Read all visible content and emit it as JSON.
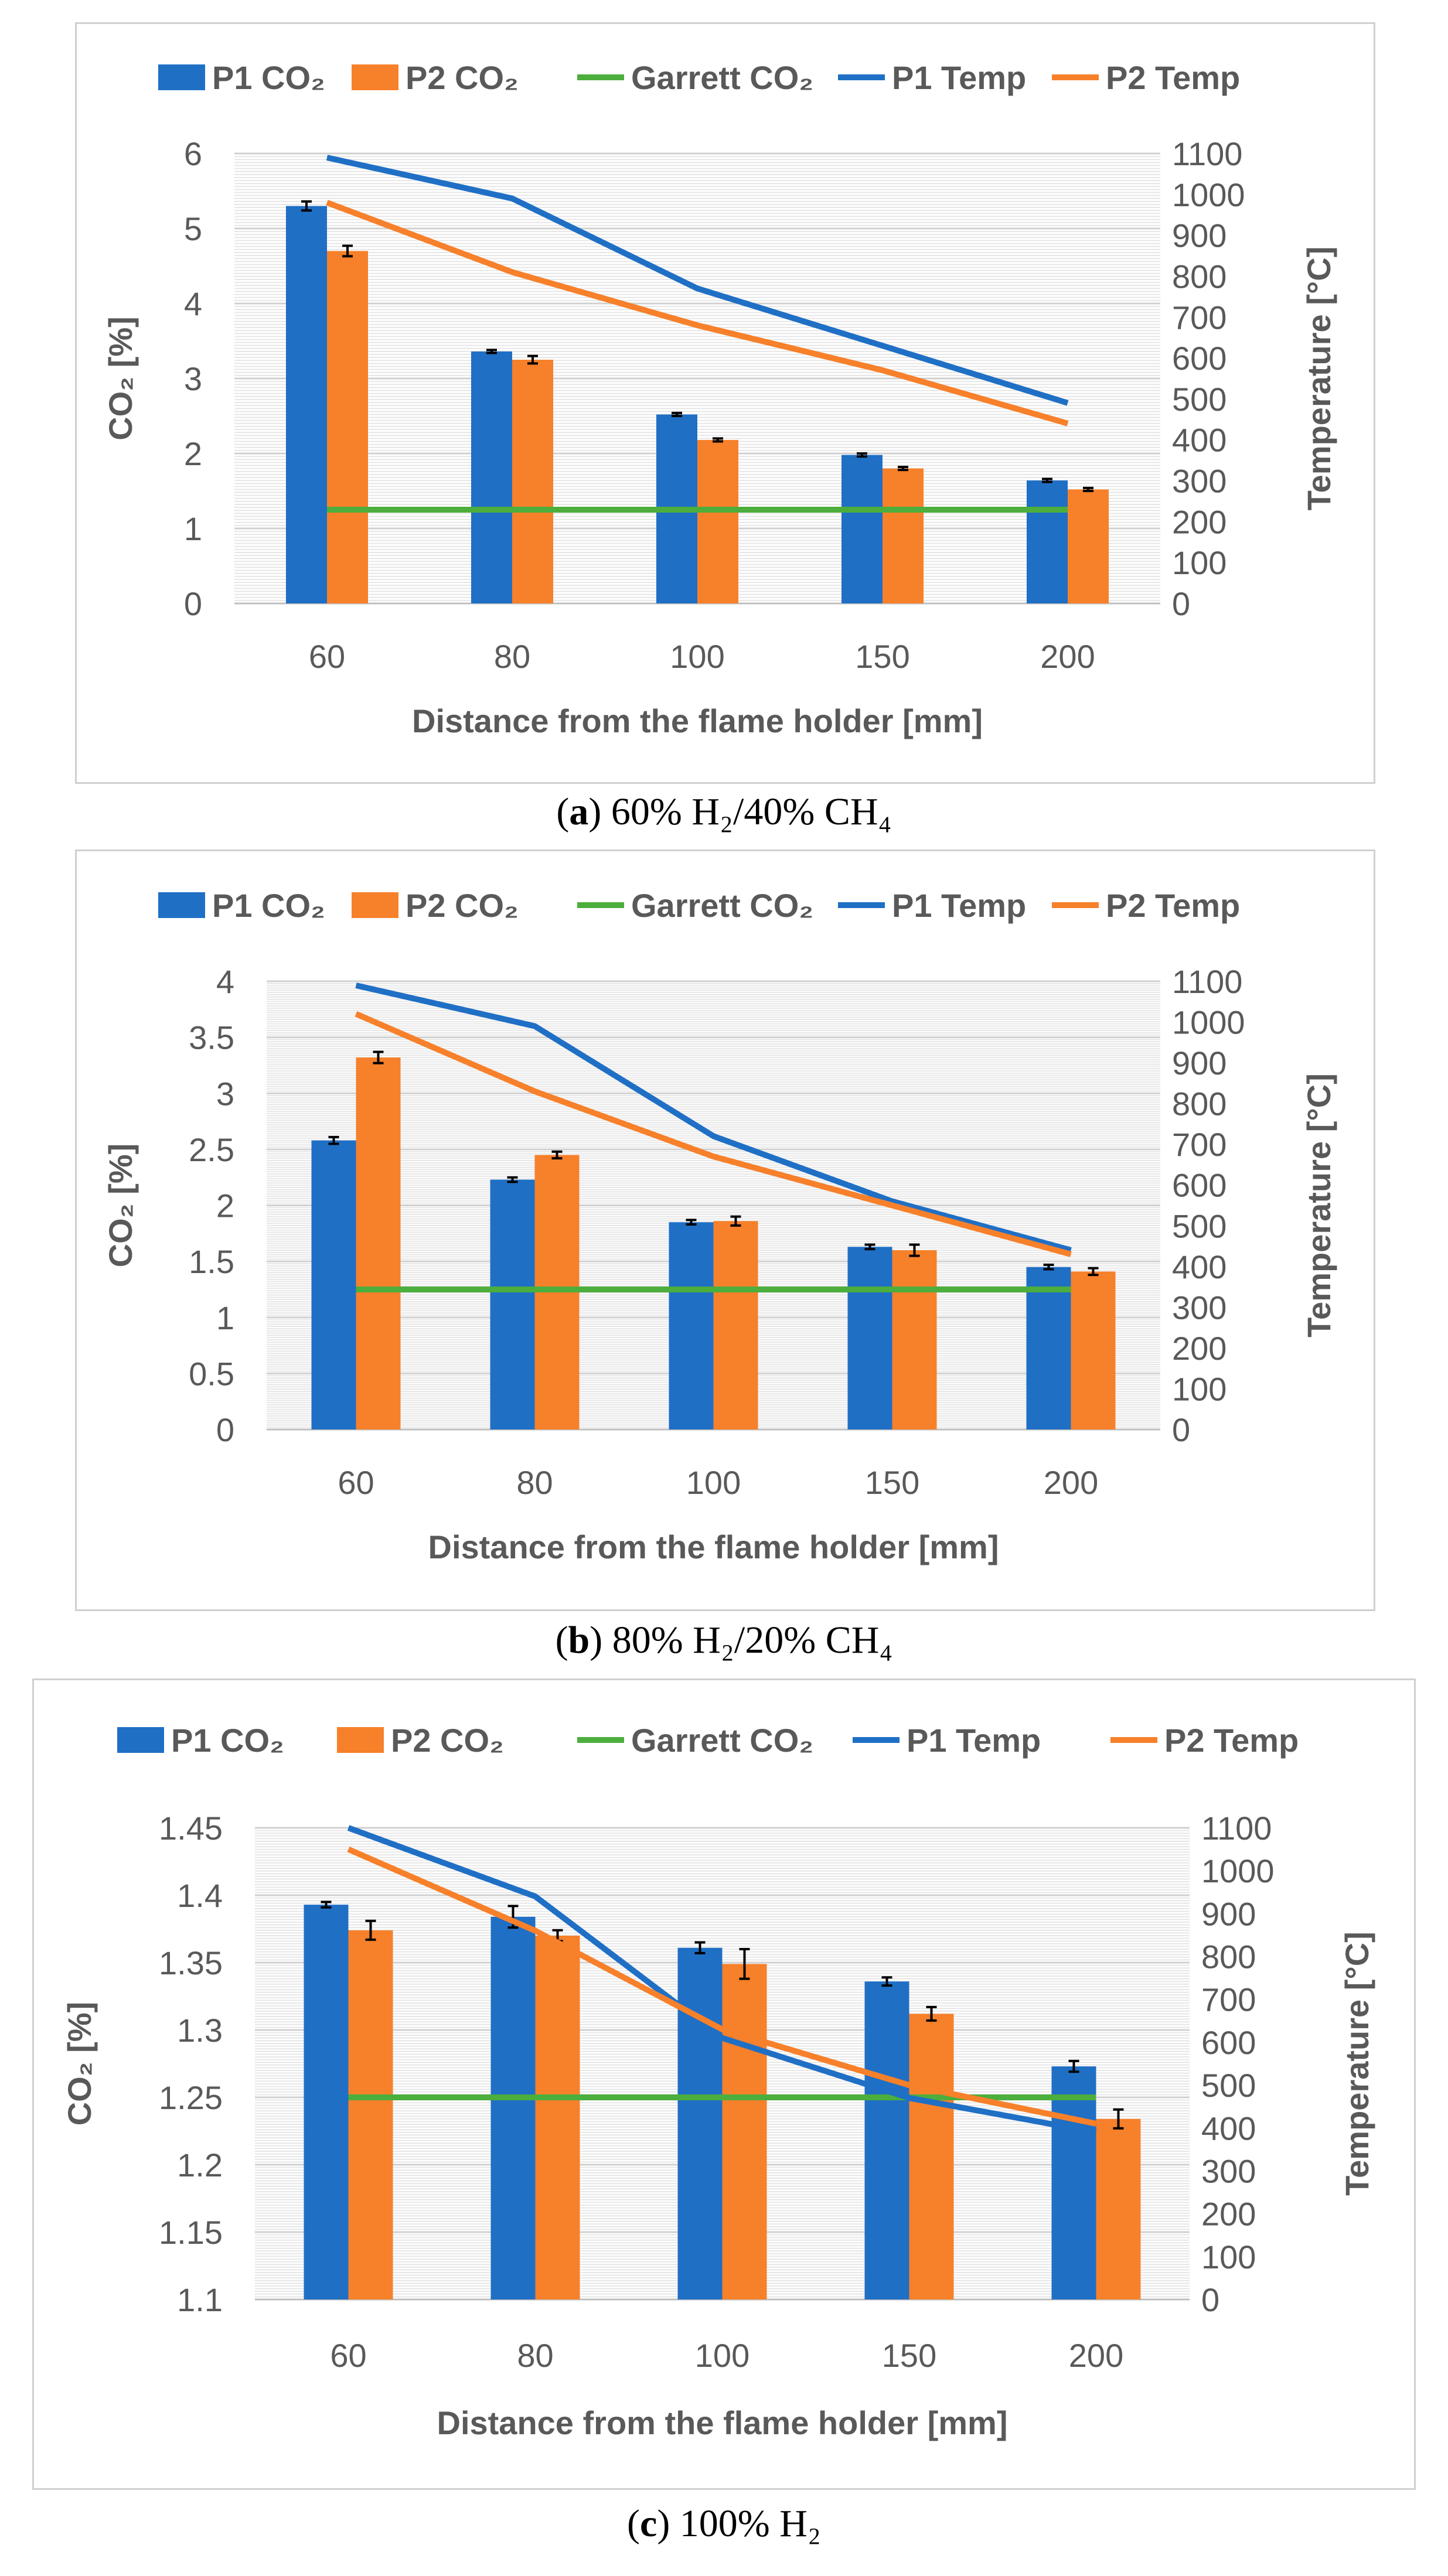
{
  "chart_data": [
    {
      "type": "bar",
      "panel_letter": "a",
      "caption_text": "60% H₂/40% CH₄",
      "categories": [
        "60",
        "80",
        "100",
        "150",
        "200"
      ],
      "series": [
        {
          "name": "P1 CO₂",
          "kind": "bar",
          "color": "#1f6fc5",
          "axis": "left",
          "values": [
            5.3,
            3.36,
            2.52,
            1.98,
            1.64
          ],
          "errors": [
            0.06,
            0.02,
            0.02,
            0.02,
            0.02
          ]
        },
        {
          "name": "P2 CO₂",
          "kind": "bar",
          "color": "#f7802a",
          "axis": "left",
          "values": [
            4.7,
            3.25,
            2.18,
            1.8,
            1.52
          ],
          "errors": [
            0.07,
            0.05,
            0.02,
            0.02,
            0.02
          ]
        },
        {
          "name": "Garrett CO₂",
          "kind": "line",
          "color": "#4cae3c",
          "axis": "left",
          "values": [
            1.25,
            1.25,
            1.25,
            1.25,
            1.25
          ]
        },
        {
          "name": "P1 Temp",
          "kind": "line",
          "color": "#1f6fc5",
          "axis": "right",
          "values": [
            1090,
            990,
            770,
            630,
            490
          ]
        },
        {
          "name": "P2 Temp",
          "kind": "line",
          "color": "#f7802a",
          "axis": "right",
          "values": [
            980,
            810,
            680,
            570,
            440
          ]
        }
      ],
      "ylabel": "CO₂ [%]",
      "y2label": "Temperature [°C]",
      "xlabel": "Distance from the flame holder [mm]",
      "ylim": [
        0,
        6
      ],
      "yticks": [
        "0",
        "1",
        "2",
        "3",
        "4",
        "5",
        "6"
      ],
      "y2lim": [
        0,
        1100
      ],
      "y2ticks": [
        "0",
        "100",
        "200",
        "300",
        "400",
        "500",
        "600",
        "700",
        "800",
        "900",
        "1000",
        "1100"
      ],
      "legend": "top"
    },
    {
      "type": "bar",
      "panel_letter": "b",
      "caption_text": "80% H₂/20% CH₄",
      "categories": [
        "60",
        "80",
        "100",
        "150",
        "200"
      ],
      "series": [
        {
          "name": "P1 CO₂",
          "kind": "bar",
          "color": "#1f6fc5",
          "axis": "left",
          "values": [
            2.58,
            2.23,
            1.85,
            1.63,
            1.45
          ],
          "errors": [
            0.03,
            0.02,
            0.02,
            0.02,
            0.02
          ]
        },
        {
          "name": "P2 CO₂",
          "kind": "bar",
          "color": "#f7802a",
          "axis": "left",
          "values": [
            3.32,
            2.45,
            1.86,
            1.6,
            1.41
          ],
          "errors": [
            0.05,
            0.03,
            0.04,
            0.05,
            0.03
          ]
        },
        {
          "name": "Garrett CO₂",
          "kind": "line",
          "color": "#4cae3c",
          "axis": "left",
          "values": [
            1.25,
            1.25,
            1.25,
            1.25,
            1.25
          ]
        },
        {
          "name": "P1 Temp",
          "kind": "line",
          "color": "#1f6fc5",
          "axis": "right",
          "values": [
            1090,
            990,
            720,
            560,
            440
          ]
        },
        {
          "name": "P2 Temp",
          "kind": "line",
          "color": "#f7802a",
          "axis": "right",
          "values": [
            1020,
            830,
            670,
            550,
            430
          ]
        }
      ],
      "ylabel": "CO₂ [%]",
      "y2label": "Temperature [°C]",
      "xlabel": "Distance from the flame holder [mm]",
      "ylim": [
        0,
        4
      ],
      "yticks": [
        "0",
        "0.5",
        "1",
        "1.5",
        "2",
        "2.5",
        "3",
        "3.5",
        "4"
      ],
      "y2lim": [
        0,
        1100
      ],
      "y2ticks": [
        "0",
        "100",
        "200",
        "300",
        "400",
        "500",
        "600",
        "700",
        "800",
        "900",
        "1000",
        "1100"
      ],
      "legend": "top"
    },
    {
      "type": "bar",
      "panel_letter": "c",
      "caption_text": "100% H₂",
      "categories": [
        "60",
        "80",
        "100",
        "150",
        "200"
      ],
      "series": [
        {
          "name": "P1 CO₂",
          "kind": "bar",
          "color": "#1f6fc5",
          "axis": "left",
          "values": [
            1.393,
            1.384,
            1.361,
            1.336,
            1.273
          ],
          "errors": [
            0.002,
            0.008,
            0.004,
            0.003,
            0.004
          ]
        },
        {
          "name": "P2 CO₂",
          "kind": "bar",
          "color": "#f7802a",
          "axis": "left",
          "values": [
            1.374,
            1.37,
            1.349,
            1.312,
            1.234
          ],
          "errors": [
            0.007,
            0.004,
            0.011,
            0.005,
            0.007
          ]
        },
        {
          "name": "Garrett CO₂",
          "kind": "line",
          "color": "#4cae3c",
          "axis": "left",
          "values": [
            1.25,
            1.25,
            1.25,
            1.25,
            1.25
          ]
        },
        {
          "name": "P1 Temp",
          "kind": "line",
          "color": "#1f6fc5",
          "axis": "right",
          "values": [
            1100,
            940,
            610,
            470,
            390
          ]
        },
        {
          "name": "P2 Temp",
          "kind": "line",
          "color": "#f7802a",
          "axis": "right",
          "values": [
            1050,
            860,
            630,
            500,
            410
          ]
        }
      ],
      "ylabel": "CO₂ [%]",
      "y2label": "Temperature [°C]",
      "xlabel": "Distance from the flame holder [mm]",
      "ylim": [
        1.1,
        1.45
      ],
      "yticks": [
        "1.1",
        "1.15",
        "1.2",
        "1.25",
        "1.3",
        "1.35",
        "1.4",
        "1.45"
      ],
      "y2lim": [
        0,
        1100
      ],
      "y2ticks": [
        "0",
        "100",
        "200",
        "300",
        "400",
        "500",
        "600",
        "700",
        "800",
        "900",
        "1000",
        "1100"
      ],
      "legend": "top"
    }
  ]
}
